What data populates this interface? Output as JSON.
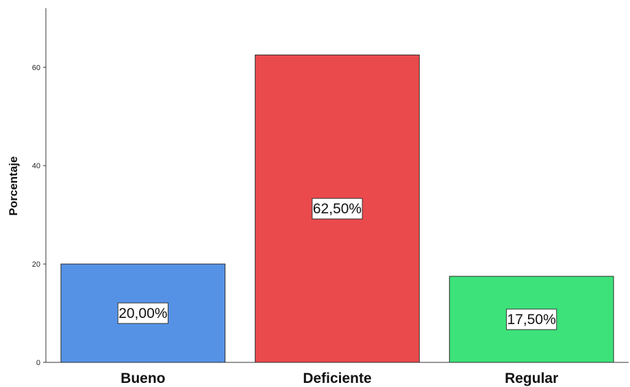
{
  "chart_data": {
    "type": "bar",
    "categories": [
      "Bueno",
      "Deficiente",
      "Regular"
    ],
    "values": [
      20.0,
      62.5,
      17.5
    ],
    "data_labels": [
      "20,00%",
      "62,50%",
      "17,50%"
    ],
    "colors": [
      "#5592e6",
      "#ea4a4c",
      "#3de27a"
    ],
    "title": "",
    "xlabel": "",
    "ylabel": "Porcentaje",
    "ylim": [
      0,
      72
    ],
    "yticks": [
      0,
      20,
      40,
      60
    ],
    "ytick_labels": [
      "0",
      "20",
      "40",
      "60"
    ],
    "grid": false,
    "legend": "none"
  }
}
